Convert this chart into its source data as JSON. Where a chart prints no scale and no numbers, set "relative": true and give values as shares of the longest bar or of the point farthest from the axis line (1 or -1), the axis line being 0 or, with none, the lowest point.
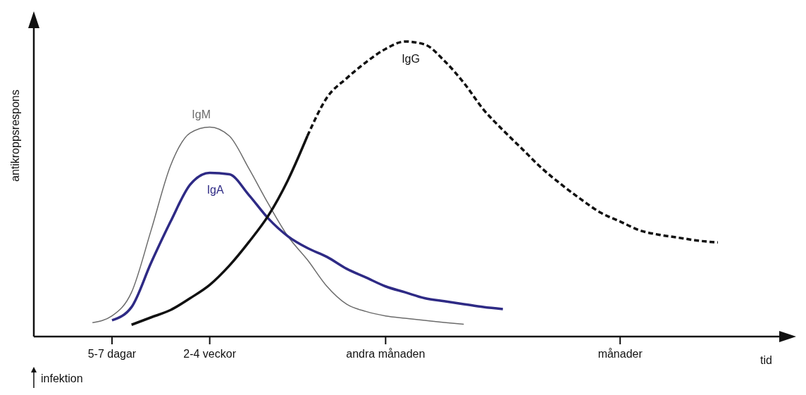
{
  "chart_data": {
    "type": "line",
    "relative": true,
    "ylabel": "antikroppsrespons",
    "xlabel": "tid",
    "categories": [
      null,
      null,
      null,
      null,
      "5-7 dagar",
      null,
      null,
      null,
      null,
      "2-4 veckor",
      null,
      null,
      null,
      null,
      null,
      null,
      null,
      null,
      "andra månaden",
      null,
      null,
      null,
      null,
      null,
      null,
      null,
      null,
      null,
      null,
      null,
      "månader",
      null,
      null,
      null,
      null,
      null,
      null
    ],
    "annotations": [
      "infektion"
    ],
    "legend": false,
    "marker": "none",
    "series": [
      {
        "name": "IgM",
        "color": "#6b6b6b",
        "line_style": "solid",
        "values": [
          null,
          null,
          null,
          0.047,
          0.07,
          0.15,
          0.36,
          0.58,
          0.69,
          0.71,
          0.68,
          0.57,
          0.45,
          0.34,
          0.26,
          0.17,
          0.11,
          0.085,
          0.07,
          0.062,
          0.055,
          0.048,
          0.042,
          null,
          null,
          null,
          null,
          null,
          null,
          null,
          null,
          null,
          null,
          null,
          null,
          null,
          null
        ]
      },
      {
        "name": "IgA",
        "color": "#2e2a85",
        "line_style": "solid",
        "values": [
          null,
          null,
          null,
          null,
          0.055,
          0.1,
          0.25,
          0.39,
          0.515,
          0.555,
          0.55,
          0.48,
          0.4,
          0.34,
          0.3,
          0.27,
          0.23,
          0.2,
          0.17,
          0.15,
          0.13,
          0.12,
          0.11,
          0.1,
          0.093,
          null,
          null,
          null,
          null,
          null,
          null,
          null,
          null,
          null,
          null,
          null,
          null
        ]
      },
      {
        "color": "#111111",
        "line_style": "solid",
        "values": [
          null,
          null,
          null,
          null,
          null,
          0.04,
          0.065,
          0.09,
          0.13,
          0.175,
          0.24,
          0.32,
          0.41,
          0.53,
          0.68,
          null,
          null,
          null,
          null,
          null,
          null,
          null,
          null,
          null,
          null,
          null,
          null,
          null,
          null,
          null,
          null,
          null,
          null,
          null,
          null,
          null,
          null
        ]
      },
      {
        "name": "IgG",
        "color": "#111111",
        "line_style": "dashed",
        "values": [
          null,
          null,
          null,
          null,
          null,
          null,
          null,
          null,
          null,
          null,
          null,
          null,
          null,
          null,
          0.68,
          0.81,
          0.875,
          0.93,
          0.975,
          1,
          0.99,
          0.935,
          0.86,
          0.77,
          0.7,
          0.635,
          0.57,
          0.515,
          0.465,
          0.42,
          0.39,
          0.36,
          0.345,
          0.335,
          0.325,
          0.319,
          null
        ]
      }
    ]
  }
}
